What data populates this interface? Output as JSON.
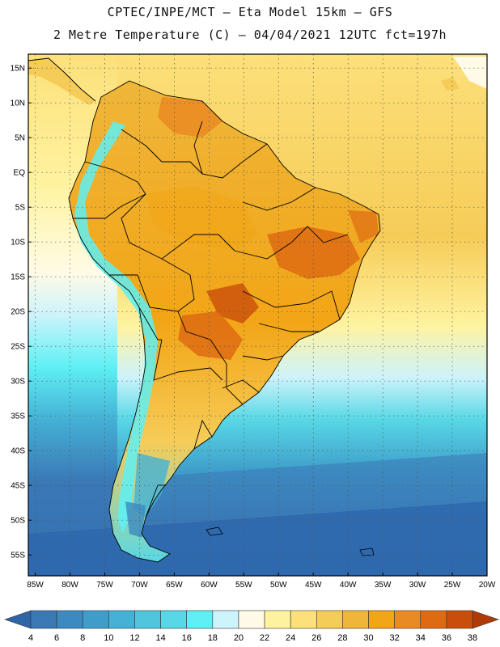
{
  "title_line1": "CPTEC/INPE/MCT –  Eta Model 15km – GFS",
  "title_line2": "2 Metre Temperature (C) – 04/04/2021 12UTC fct=197h",
  "map": {
    "variable": "2 Metre Temperature",
    "units": "C",
    "lat_range": [
      -58,
      17
    ],
    "lon_range": [
      -86,
      -20
    ],
    "lat_labels": [
      "15N",
      "10N",
      "5N",
      "EQ",
      "5S",
      "10S",
      "15S",
      "20S",
      "25S",
      "30S",
      "35S",
      "40S",
      "45S",
      "50S",
      "55S"
    ],
    "lat_values": [
      15,
      10,
      5,
      0,
      -5,
      -10,
      -15,
      -20,
      -25,
      -30,
      -35,
      -40,
      -45,
      -50,
      -55
    ],
    "lon_labels": [
      "85W",
      "80W",
      "75W",
      "70W",
      "65W",
      "60W",
      "55W",
      "50W",
      "45W",
      "40W",
      "35W",
      "30W",
      "25W",
      "20W"
    ],
    "lon_values": [
      -85,
      -80,
      -75,
      -70,
      -65,
      -60,
      -55,
      -50,
      -45,
      -40,
      -35,
      -30,
      -25,
      -20
    ]
  },
  "colorbar": {
    "labels": [
      "4",
      "6",
      "8",
      "10",
      "12",
      "14",
      "16",
      "18",
      "20",
      "22",
      "24",
      "26",
      "28",
      "30",
      "32",
      "34",
      "36",
      "38"
    ],
    "colors": [
      "#3a78b6",
      "#3c8ac0",
      "#3f9dca",
      "#45b1d6",
      "#4fc5de",
      "#58d8e6",
      "#5ef0f4",
      "#cdf3fb",
      "#fffbe6",
      "#fff3a0",
      "#fce07a",
      "#f6cc58",
      "#efb63a",
      "#f2a516",
      "#ea8a22",
      "#de6b12",
      "#c94e0b"
    ],
    "low_color": "#2f64a6",
    "high_color": "#b03a06"
  },
  "colors": {
    "ocean_cold": "#2d66ad",
    "ocean_mid": "#3f9dca",
    "ocean_light": "#8ed6e8",
    "ocean_warm": "#fce07a",
    "land_hot": "#ea8a22",
    "land_hottest": "#c94e0b",
    "andes": "#5ef0f4"
  }
}
